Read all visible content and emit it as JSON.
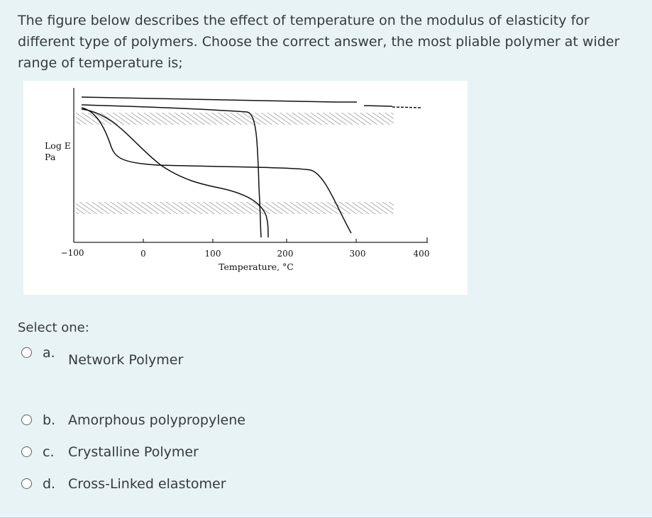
{
  "question": {
    "lines": [
      "The figure below describes the effect of temperature on the modulus of elasticity for",
      "different type of polymers. Choose the correct answer, the most pliable polymer at wider",
      "range of temperature is;"
    ]
  },
  "figure": {
    "y_label_top": "Log E",
    "y_label_bottom": "Pa",
    "x_label": "Temperature, °C",
    "x_ticks": [
      "−100",
      "0",
      "100",
      "200",
      "300",
      "400"
    ]
  },
  "prompt": "Select one:",
  "options": [
    {
      "letter": "a.",
      "label": "Network Polymer"
    },
    {
      "letter": "b.",
      "label": "Amorphous polypropylene"
    },
    {
      "letter": "c.",
      "label": "Crystalline Polymer"
    },
    {
      "letter": "d.",
      "label": "Cross-Linked elastomer"
    }
  ]
}
